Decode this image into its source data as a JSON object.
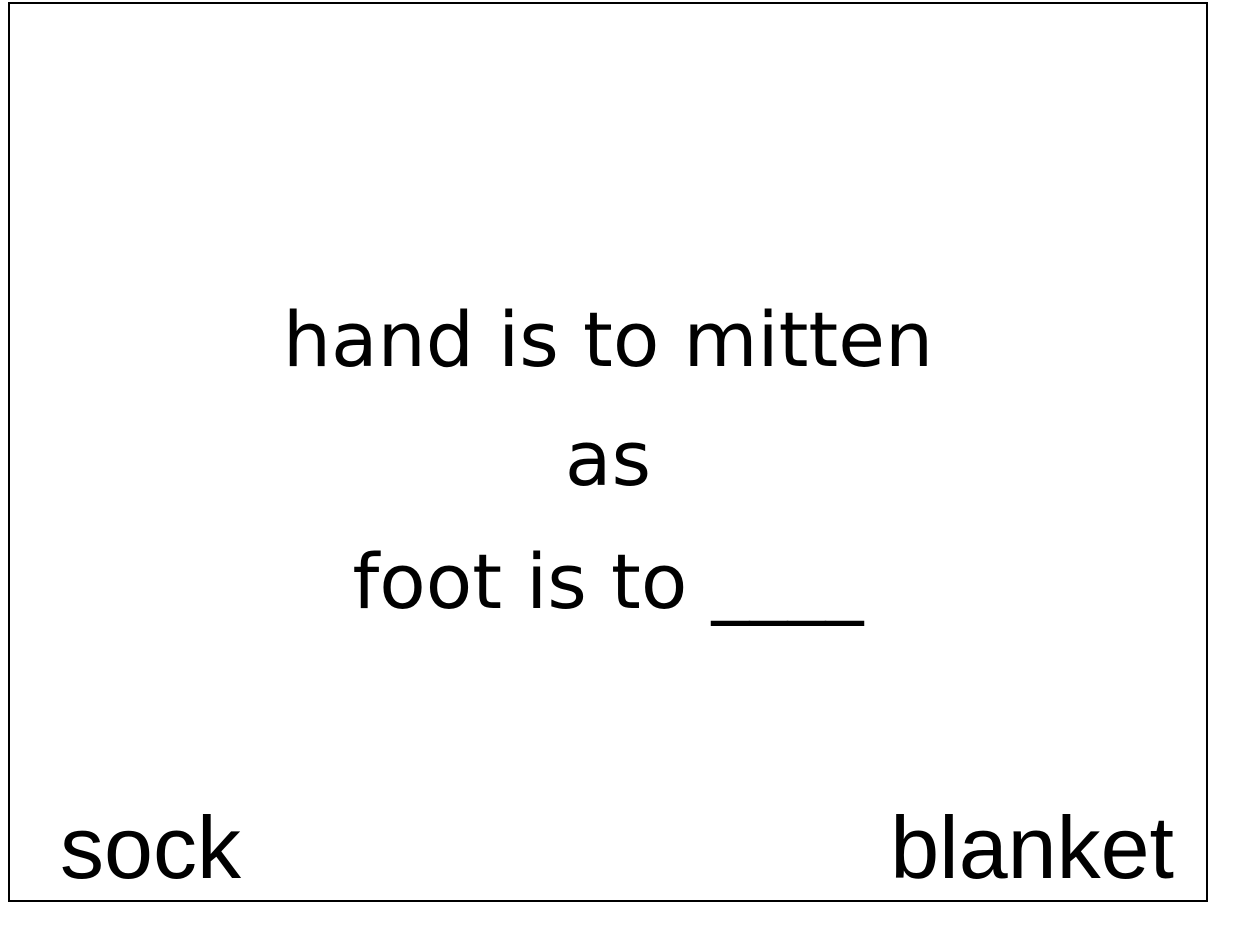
{
  "prompt": {
    "line1": "hand is to mitten",
    "line2": "as",
    "line3": "foot is to ____"
  },
  "options": {
    "left": "sock",
    "right": "blanket"
  }
}
